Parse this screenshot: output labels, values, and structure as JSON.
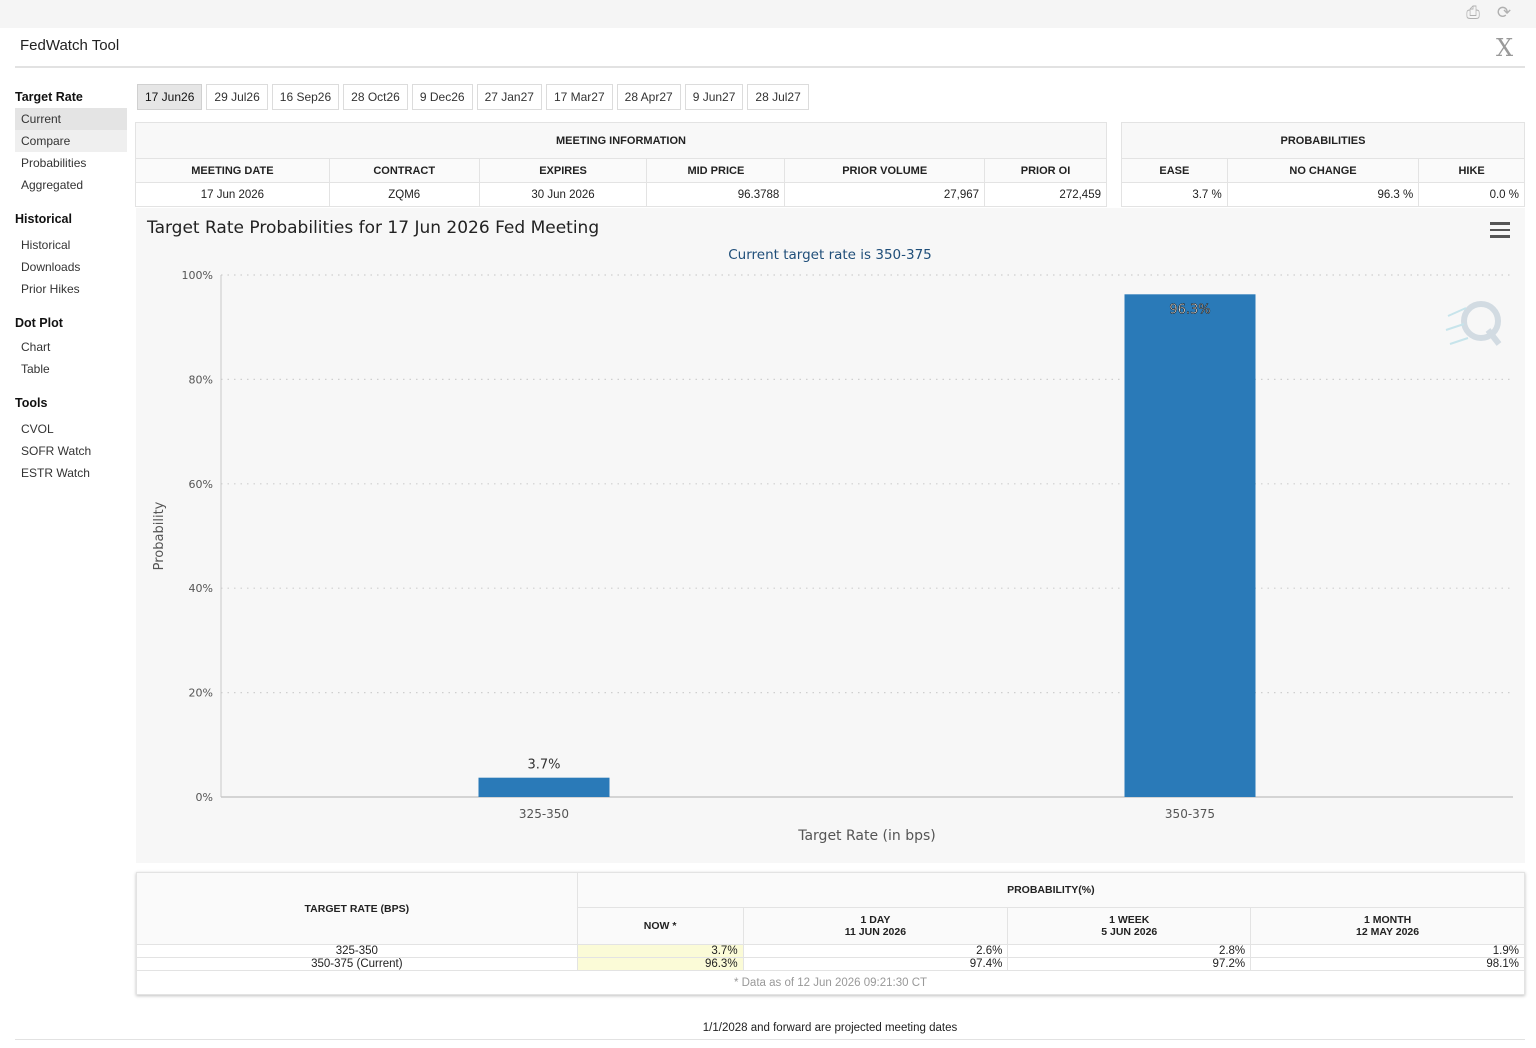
{
  "app": {
    "title": "FedWatch Tool"
  },
  "sidebar": {
    "sections": [
      {
        "heading": "Target Rate",
        "items": [
          "Current",
          "Compare",
          "Probabilities",
          "Aggregated"
        ]
      },
      {
        "heading": "Historical",
        "items": [
          "Historical",
          "Downloads",
          "Prior Hikes"
        ]
      },
      {
        "heading": "Dot Plot",
        "items": [
          "Chart",
          "Table"
        ]
      },
      {
        "heading": "Tools",
        "items": [
          "CVOL",
          "SOFR Watch",
          "ESTR Watch"
        ]
      }
    ]
  },
  "tabs": [
    "17 Jun26",
    "29 Jul26",
    "16 Sep26",
    "28 Oct26",
    "9 Dec26",
    "27 Jan27",
    "17 Mar27",
    "28 Apr27",
    "9 Jun27",
    "28 Jul27"
  ],
  "meeting_info": {
    "heading": "MEETING INFORMATION",
    "columns": [
      "MEETING DATE",
      "CONTRACT",
      "EXPIRES",
      "MID PRICE",
      "PRIOR VOLUME",
      "PRIOR OI"
    ],
    "values": [
      "17 Jun 2026",
      "ZQM6",
      "30 Jun 2026",
      "96.3788",
      "27,967",
      "272,459"
    ]
  },
  "probabilities": {
    "heading": "PROBABILITIES",
    "columns": [
      "EASE",
      "NO CHANGE",
      "HIKE"
    ],
    "values": [
      "3.7 %",
      "96.3 %",
      "0.0 %"
    ]
  },
  "chart_data": {
    "type": "bar",
    "title": "Target Rate Probabilities for 17 Jun 2026 Fed Meeting",
    "subtitle": "Current target rate is 350-375",
    "xlabel": "Target Rate (in bps)",
    "ylabel": "Probability",
    "categories": [
      "325-350",
      "350-375"
    ],
    "values": [
      3.7,
      96.3
    ],
    "data_labels": [
      "3.7%",
      "96.3%"
    ],
    "ylim": [
      0,
      100
    ],
    "yticks": [
      "0%",
      "20%",
      "40%",
      "60%",
      "80%",
      "100%"
    ],
    "grid": true,
    "color": "#2a7ab8"
  },
  "results": {
    "target_rate_heading": "TARGET RATE (BPS)",
    "probability_heading": "PROBABILITY(%)",
    "now_heading": "NOW *",
    "periods": [
      {
        "label": "1 DAY",
        "date": "11 JUN 2026"
      },
      {
        "label": "1 WEEK",
        "date": "5 JUN 2026"
      },
      {
        "label": "1 MONTH",
        "date": "12 MAY 2026"
      }
    ],
    "rows": [
      {
        "rate": "325-350",
        "now": "3.7%",
        "day": "2.6%",
        "week": "2.8%",
        "month": "1.9%"
      },
      {
        "rate": "350-375 (Current)",
        "now": "96.3%",
        "day": "97.4%",
        "week": "97.2%",
        "month": "98.1%"
      }
    ],
    "note": "* Data as of 12 Jun 2026 09:21:30 CT"
  },
  "footnote": "1/1/2028 and forward are projected meeting dates"
}
